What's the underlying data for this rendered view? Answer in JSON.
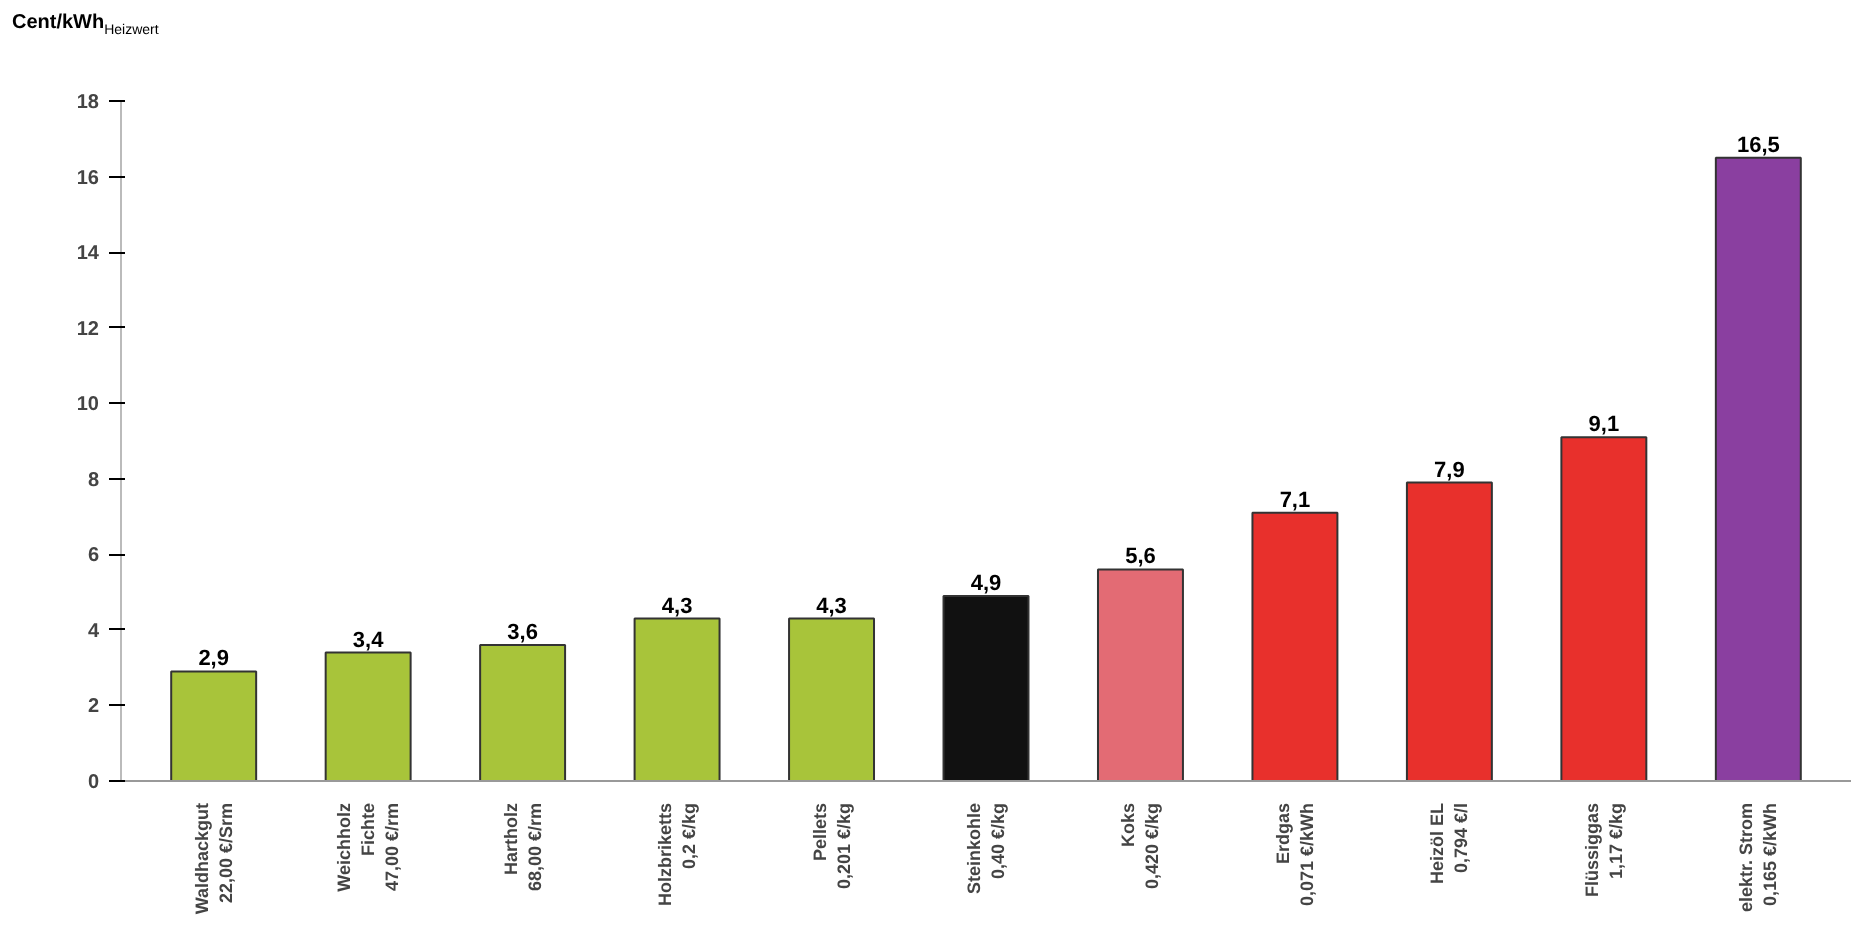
{
  "chart_data": {
    "type": "bar",
    "ylabel": "Cent/kWh$_{Heizwert}$",
    "categories": [
      "Waldhackgut\n22,00 €/Srm",
      "Weichholz\nFichte\n47,00 €/rm",
      "Hartholz\n68,00 €/rm",
      "Holzbriketts\n0,2 €/kg",
      "Pellets\n0,201 €/kg",
      "Steinkohle\n0,40 €/kg",
      "Koks\n0,420 €/kg",
      "Erdgas\n0,071 €/kWh",
      "Heizöl EL\n0,794 €/l",
      "Flüssiggas\n1,17 €/kg",
      "elektr. Strom\n0,165 €/kWh"
    ],
    "values": [
      2.9,
      3.4,
      3.6,
      4.3,
      4.3,
      4.9,
      5.6,
      7.1,
      7.9,
      9.1,
      16.5
    ],
    "value_labels": [
      "2,9",
      "3,4",
      "3,6",
      "4,3",
      "4,3",
      "4,9",
      "5,6",
      "7,1",
      "7,9",
      "9,1",
      "16,5"
    ],
    "colors": [
      "#a8c43a",
      "#a8c43a",
      "#a8c43a",
      "#a8c43a",
      "#a8c43a",
      "#111111",
      "#e36b74",
      "#e8302c",
      "#e8302c",
      "#e8302c",
      "#8a3fa0"
    ],
    "ylim": [
      0,
      18
    ],
    "yticks": [
      0,
      2,
      4,
      6,
      8,
      10,
      12,
      14,
      16,
      18
    ],
    "grid": false
  }
}
